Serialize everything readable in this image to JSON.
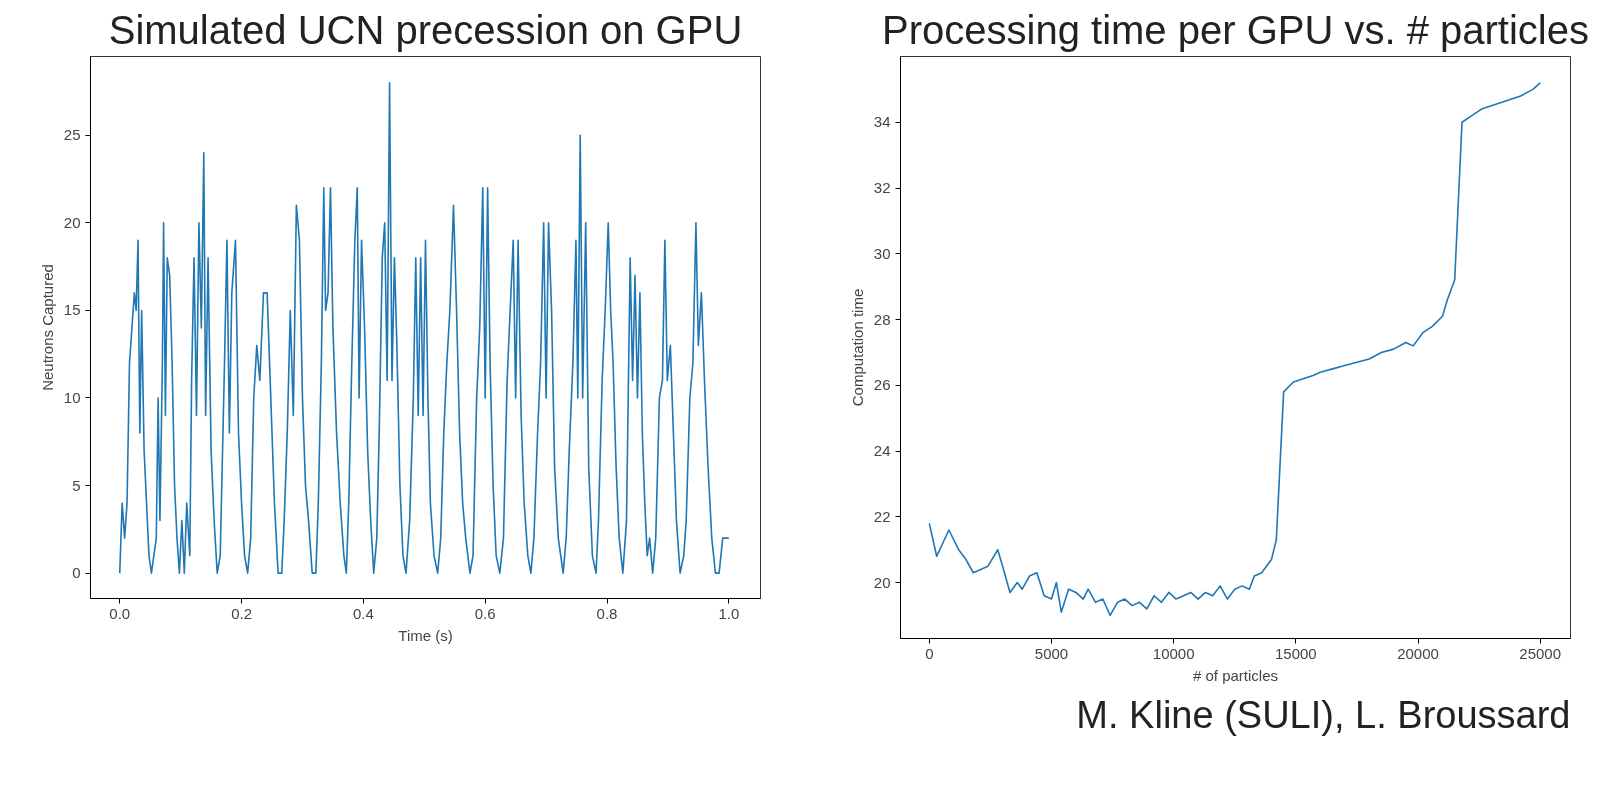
{
  "chart_data": [
    {
      "type": "line",
      "title": "Simulated UCN precession on GPU",
      "xlabel": "Time (s)",
      "ylabel": "Neutrons Captured",
      "grid": false,
      "color": "#1f77b4",
      "x": [
        0.0,
        0.004,
        0.008,
        0.012,
        0.016,
        0.02,
        0.024,
        0.027,
        0.03,
        0.033,
        0.036,
        0.04,
        0.044,
        0.048,
        0.052,
        0.056,
        0.06,
        0.063,
        0.066,
        0.07,
        0.072,
        0.075,
        0.078,
        0.082,
        0.086,
        0.09,
        0.094,
        0.098,
        0.102,
        0.106,
        0.11,
        0.115,
        0.118,
        0.122,
        0.126,
        0.13,
        0.134,
        0.138,
        0.141,
        0.145,
        0.15,
        0.155,
        0.16,
        0.165,
        0.172,
        0.176,
        0.18,
        0.184,
        0.19,
        0.195,
        0.2,
        0.205,
        0.21,
        0.215,
        0.22,
        0.225,
        0.23,
        0.236,
        0.242,
        0.248,
        0.254,
        0.26,
        0.266,
        0.27,
        0.275,
        0.28,
        0.285,
        0.29,
        0.295,
        0.3,
        0.305,
        0.31,
        0.316,
        0.322,
        0.326,
        0.331,
        0.335,
        0.338,
        0.342,
        0.346,
        0.35,
        0.356,
        0.362,
        0.368,
        0.372,
        0.376,
        0.381,
        0.386,
        0.39,
        0.393,
        0.397,
        0.402,
        0.407,
        0.412,
        0.417,
        0.422,
        0.426,
        0.431,
        0.435,
        0.439,
        0.443,
        0.447,
        0.451,
        0.455,
        0.46,
        0.465,
        0.47,
        0.476,
        0.482,
        0.486,
        0.49,
        0.494,
        0.498,
        0.502,
        0.506,
        0.51,
        0.516,
        0.522,
        0.527,
        0.532,
        0.537,
        0.542,
        0.548,
        0.553,
        0.558,
        0.563,
        0.568,
        0.575,
        0.58,
        0.586,
        0.591,
        0.596,
        0.6,
        0.604,
        0.608,
        0.613,
        0.618,
        0.624,
        0.63,
        0.636,
        0.641,
        0.646,
        0.65,
        0.654,
        0.659,
        0.664,
        0.67,
        0.675,
        0.68,
        0.686,
        0.691,
        0.696,
        0.7,
        0.704,
        0.709,
        0.714,
        0.72,
        0.728,
        0.733,
        0.738,
        0.744,
        0.749,
        0.752,
        0.756,
        0.76,
        0.765,
        0.77,
        0.776,
        0.782,
        0.786,
        0.792,
        0.797,
        0.802,
        0.806,
        0.81,
        0.815,
        0.82,
        0.826,
        0.832,
        0.838,
        0.842,
        0.846,
        0.85,
        0.854,
        0.858,
        0.862,
        0.866,
        0.87,
        0.875,
        0.88,
        0.886,
        0.891,
        0.895,
        0.899,
        0.904,
        0.909,
        0.914,
        0.92,
        0.926,
        0.93,
        0.936,
        0.941,
        0.946,
        0.95,
        0.955,
        0.96,
        0.966,
        0.972,
        0.978,
        0.984,
        0.99,
        0.995,
        1.0
      ],
      "values": [
        0,
        4,
        2,
        4,
        12,
        14,
        16,
        15,
        19,
        8,
        15,
        7,
        4,
        1,
        0,
        1,
        2,
        10,
        3,
        12,
        20,
        9,
        18,
        17,
        12,
        5,
        2,
        0,
        3,
        0,
        4,
        1,
        11,
        18,
        9,
        20,
        14,
        24,
        9,
        18,
        7,
        3,
        0,
        1,
        12,
        19,
        8,
        16,
        19,
        8,
        4,
        1,
        0,
        2,
        10,
        13,
        11,
        16,
        16,
        10,
        4,
        0,
        0,
        3,
        8,
        15,
        9,
        21,
        19,
        10,
        5,
        3,
        0,
        0,
        4,
        12,
        22,
        15,
        16,
        22,
        14,
        8,
        4,
        1,
        0,
        4,
        12,
        19,
        22,
        10,
        19,
        14,
        7,
        3,
        0,
        2,
        8,
        18,
        20,
        11,
        28,
        11,
        18,
        13,
        5,
        1,
        0,
        3,
        10,
        18,
        9,
        18,
        9,
        19,
        10,
        4,
        1,
        0,
        2,
        8,
        12,
        15,
        21,
        15,
        8,
        4,
        2,
        0,
        1,
        10,
        14,
        22,
        10,
        22,
        12,
        5,
        1,
        0,
        2,
        11,
        15,
        19,
        10,
        19,
        9,
        4,
        1,
        0,
        2,
        8,
        12,
        20,
        10,
        20,
        15,
        6,
        2,
        0,
        2,
        7,
        12,
        19,
        10,
        25,
        10,
        20,
        6,
        1,
        0,
        3,
        11,
        15,
        20,
        15,
        12,
        6,
        2,
        0,
        3,
        18,
        11,
        17,
        10,
        16,
        8,
        4,
        1,
        2,
        0,
        2,
        10,
        11,
        19,
        11,
        13,
        8,
        3,
        0,
        1,
        3,
        10,
        12,
        20,
        13,
        16,
        11,
        6,
        2,
        0,
        0,
        2,
        2,
        2
      ],
      "xlim": [
        -0.048,
        1.052
      ],
      "ylim": [
        -1.45,
        29.5
      ],
      "xticks": [
        {
          "value": 0,
          "label": "0.0"
        },
        {
          "value": 0.2,
          "label": "0.2"
        },
        {
          "value": 0.4,
          "label": "0.4"
        },
        {
          "value": 0.6,
          "label": "0.6"
        },
        {
          "value": 0.8,
          "label": "0.8"
        },
        {
          "value": 1,
          "label": "1.0"
        }
      ],
      "yticks": [
        0,
        5,
        10,
        15,
        20,
        25
      ]
    },
    {
      "type": "line",
      "title": "Processing time per GPU vs. # particles",
      "xlabel": "# of particles",
      "ylabel": "Computation time",
      "grid": false,
      "color": "#1f77b4",
      "x": [
        0,
        300,
        800,
        1200,
        1500,
        1800,
        2400,
        2800,
        3000,
        3300,
        3600,
        3800,
        4100,
        4400,
        4700,
        5000,
        5200,
        5400,
        5700,
        6000,
        6300,
        6500,
        6800,
        7100,
        7400,
        7700,
        8000,
        8300,
        8600,
        8900,
        9200,
        9500,
        9800,
        10100,
        10400,
        10700,
        11000,
        11300,
        11600,
        11900,
        12200,
        12500,
        12800,
        13100,
        13300,
        13600,
        14000,
        14200,
        14500,
        14900,
        15300,
        15700,
        16000,
        16500,
        17000,
        17500,
        18000,
        18500,
        19000,
        19500,
        19800,
        20200,
        20600,
        21000,
        21200,
        21500,
        21800,
        22200,
        22600,
        23000,
        23400,
        23800,
        24200,
        24700,
        25000
      ],
      "values": [
        21.8,
        20.8,
        21.6,
        21.0,
        20.7,
        20.3,
        20.5,
        21.0,
        20.5,
        19.7,
        20.0,
        19.8,
        20.2,
        20.3,
        19.6,
        19.5,
        20.0,
        19.1,
        19.8,
        19.7,
        19.5,
        19.8,
        19.4,
        19.5,
        19.0,
        19.4,
        19.5,
        19.3,
        19.4,
        19.2,
        19.6,
        19.4,
        19.7,
        19.5,
        19.6,
        19.7,
        19.5,
        19.7,
        19.6,
        19.9,
        19.5,
        19.8,
        19.9,
        19.8,
        20.2,
        20.3,
        20.7,
        21.3,
        25.8,
        26.1,
        26.2,
        26.3,
        26.4,
        26.5,
        26.6,
        26.7,
        26.8,
        27.0,
        27.1,
        27.3,
        27.2,
        27.6,
        27.8,
        28.1,
        28.6,
        29.2,
        34.0,
        34.2,
        34.4,
        34.5,
        34.6,
        34.7,
        34.8,
        35.0,
        35.2
      ],
      "xlim": [
        -1180,
        26240
      ],
      "ylim": [
        18.3,
        36.0
      ],
      "xticks": [
        0,
        5000,
        10000,
        15000,
        20000,
        25000
      ],
      "yticks": [
        20,
        22,
        24,
        26,
        28,
        30,
        32,
        34
      ],
      "annotations": [
        "M. Kline (SULI), L. Broussard"
      ]
    }
  ]
}
